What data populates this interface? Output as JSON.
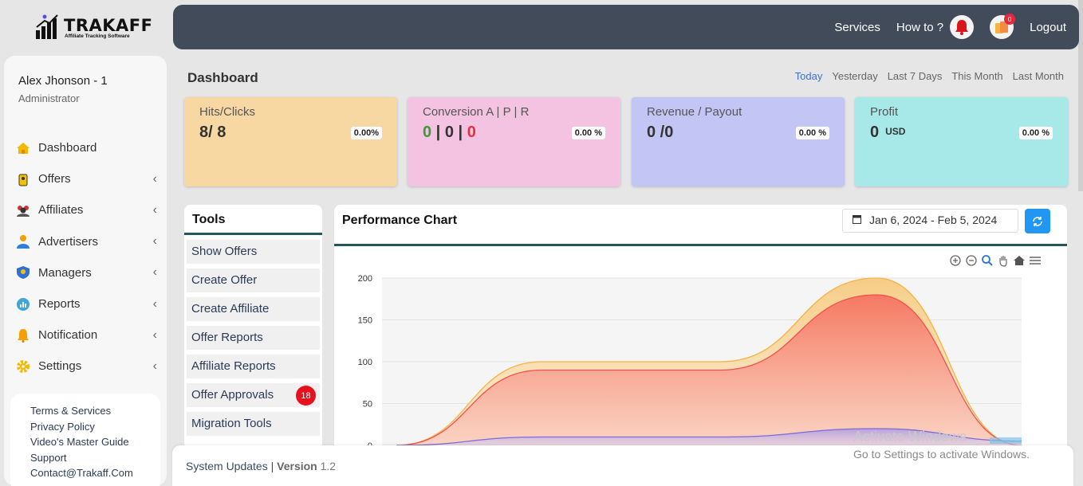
{
  "logo": {
    "brand": "TRAKAFF",
    "tagline": "Affiliate Tracking Software"
  },
  "topnav": {
    "services": "Services",
    "howto": "How to ?",
    "notif_count": "0",
    "logout": "Logout"
  },
  "user": {
    "name": "Alex Jhonson - 1",
    "role": "Administrator"
  },
  "sidebar": {
    "items": [
      {
        "label": "Dashboard",
        "icon": "home-icon",
        "expandable": false
      },
      {
        "label": "Offers",
        "icon": "offers-icon",
        "expandable": true
      },
      {
        "label": "Affiliates",
        "icon": "affiliates-icon",
        "expandable": true
      },
      {
        "label": "Advertisers",
        "icon": "advertisers-icon",
        "expandable": true
      },
      {
        "label": "Managers",
        "icon": "managers-icon",
        "expandable": true
      },
      {
        "label": "Reports",
        "icon": "reports-icon",
        "expandable": true
      },
      {
        "label": "Notification",
        "icon": "bell-icon",
        "expandable": true
      },
      {
        "label": "Settings",
        "icon": "gear-icon",
        "expandable": true
      }
    ],
    "footer_links": [
      "Terms & Services",
      "Privacy Policy",
      "Video's Master Guide",
      "Support",
      "Contact@Trakaff.Com"
    ]
  },
  "dashboard": {
    "title": "Dashboard",
    "ranges": [
      "Today",
      "Yesterday",
      "Last 7 Days",
      "This Month",
      "Last Month"
    ],
    "active_range": "Today"
  },
  "cards": {
    "hits": {
      "title": "Hits/Clicks",
      "value": "8/ 8",
      "pct": "0.00%"
    },
    "conversion": {
      "title": "Conversion A | P | R",
      "a": "0",
      "sep1": " | ",
      "p": "0",
      "sep2": " | ",
      "r": "0",
      "pct": "0.00 %"
    },
    "revenue": {
      "title": "Revenue / Payout",
      "value": "0 /0",
      "pct": "0.00 %"
    },
    "profit": {
      "title": "Profit",
      "value": "0",
      "unit": "USD",
      "pct": "0.00 %"
    }
  },
  "tools": {
    "title": "Tools",
    "items": [
      {
        "label": "Show Offers"
      },
      {
        "label": "Create Offer"
      },
      {
        "label": "Create Affiliate"
      },
      {
        "label": "Offer Reports"
      },
      {
        "label": "Affiliate Reports"
      },
      {
        "label": "Offer Approvals",
        "badge": "18"
      },
      {
        "label": "Migration Tools"
      }
    ]
  },
  "performance": {
    "title": "Performance Chart",
    "date_range": "Jan 6, 2024 - Feb 5, 2024",
    "colors": {
      "clicks": "#f5b342",
      "conversions": "#f5504f",
      "revenue": "#7b6ad8",
      "profit": "#3fa6d9"
    }
  },
  "chart_data": {
    "type": "area",
    "yticks": [
      0,
      50,
      100,
      150,
      200
    ],
    "ylim": [
      0,
      200
    ],
    "series": [
      {
        "values": [
          0,
          100,
          100,
          200,
          0
        ]
      },
      {
        "values": [
          0,
          90,
          90,
          180,
          0
        ]
      },
      {
        "values": [
          0,
          10,
          10,
          20,
          5
        ]
      }
    ]
  },
  "system": {
    "label": "System Updates",
    "sep": " | ",
    "version_label": "Version",
    "version": "1.2"
  },
  "watermark": {
    "line1": "Activate Windows",
    "line2": "Go to Settings to activate Windows."
  }
}
